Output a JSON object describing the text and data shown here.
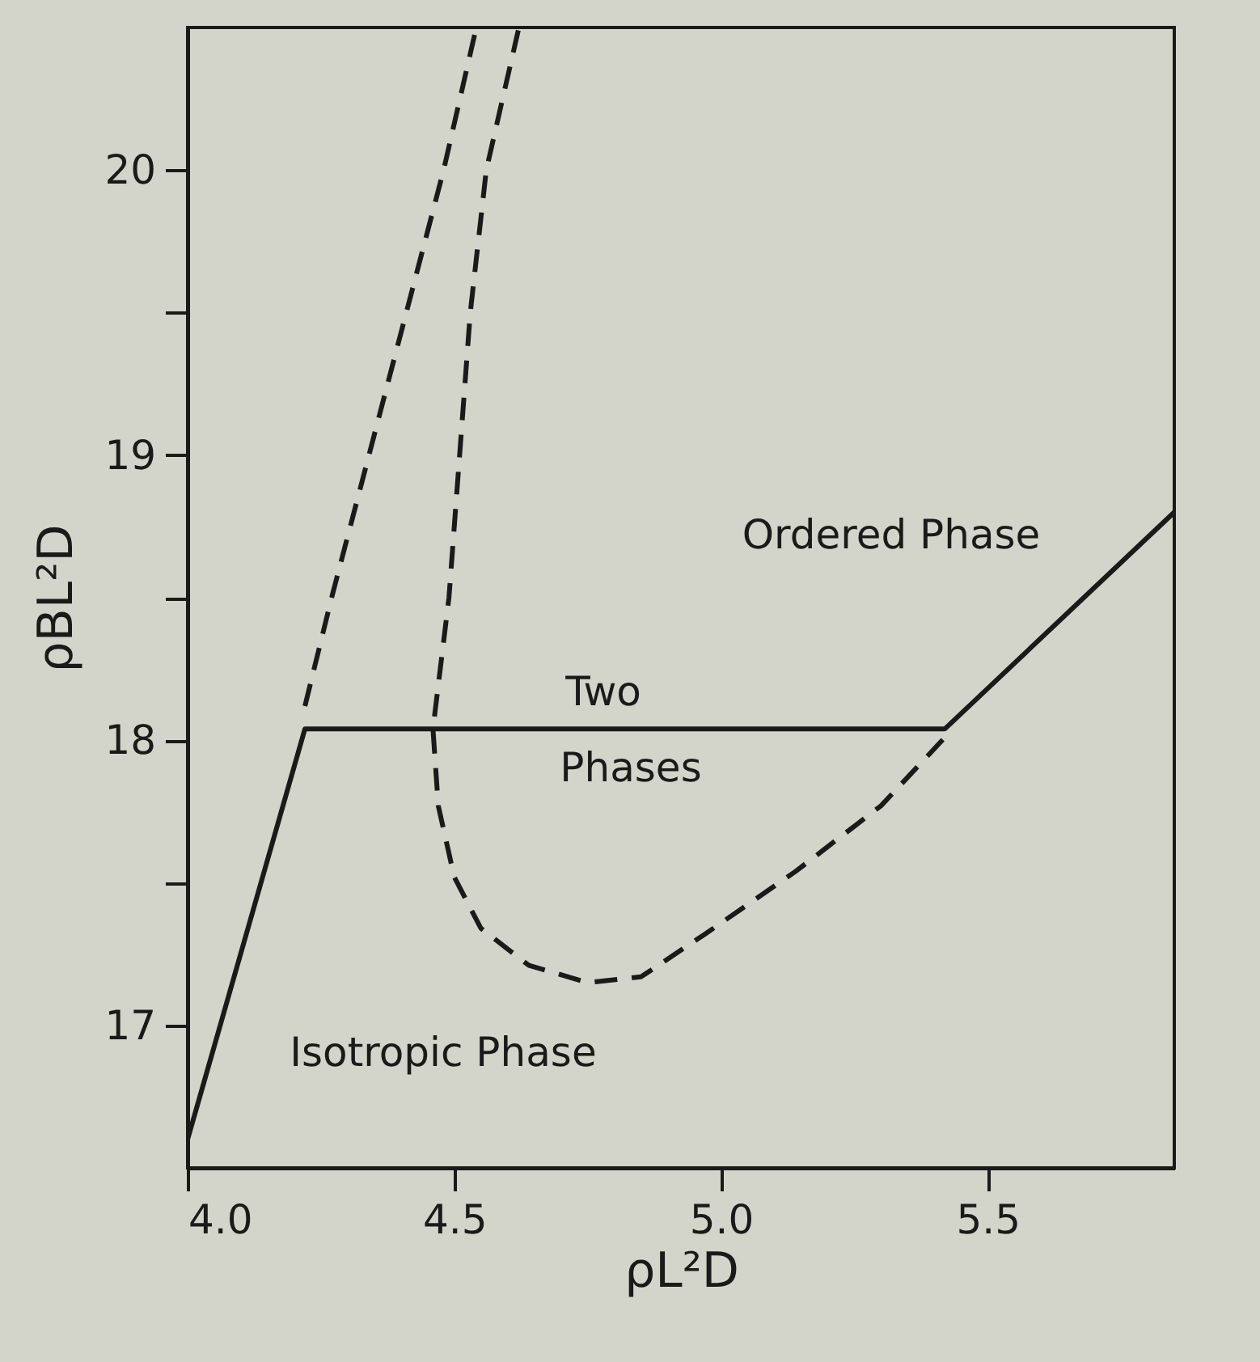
{
  "chart_data": {
    "type": "line",
    "xlabel": "ρL²D",
    "ylabel": "ρBL²D",
    "xlim": [
      4.0,
      5.85
    ],
    "ylim": [
      16.5,
      20.5
    ],
    "xticks": [
      {
        "value": 4.0,
        "label": "4.0"
      },
      4.5,
      {
        "value": 5.0,
        "label": "5.0"
      },
      5.5
    ],
    "yticks": [
      17,
      {
        "value": 17.5,
        "label": null
      },
      18,
      {
        "value": 18.5,
        "label": null
      },
      19,
      {
        "value": 19.5,
        "label": null
      },
      20
    ],
    "grid": false,
    "marker": "none",
    "series": [
      {
        "color": "#1a1a1a",
        "line_style": "solid",
        "x": [
          4.0,
          4.22,
          5.42,
          5.85
        ],
        "values": [
          16.6,
          18.04,
          18.04,
          18.8
        ]
      },
      {
        "color": "#1a1a1a",
        "line_style": "dashed",
        "x": [
          4.22,
          4.27,
          4.34,
          4.41,
          4.48,
          4.54
        ],
        "values": [
          18.12,
          18.5,
          19.0,
          19.5,
          20.0,
          20.49
        ]
      },
      {
        "color": "#1a1a1a",
        "line_style": "dashed",
        "x": [
          4.62,
          4.56,
          4.53,
          4.51,
          4.49,
          4.46,
          4.47,
          4.5,
          4.55,
          4.64,
          4.75,
          4.85,
          4.97,
          5.14,
          5.3,
          5.43
        ],
        "values": [
          20.49,
          20.0,
          19.5,
          19.0,
          18.5,
          18.04,
          17.77,
          17.52,
          17.34,
          17.21,
          17.15,
          17.17,
          17.32,
          17.54,
          17.77,
          18.03
        ]
      }
    ],
    "annotations": [
      "Ordered Phase",
      "Two",
      "Phases",
      "Isotropic Phase"
    ]
  }
}
